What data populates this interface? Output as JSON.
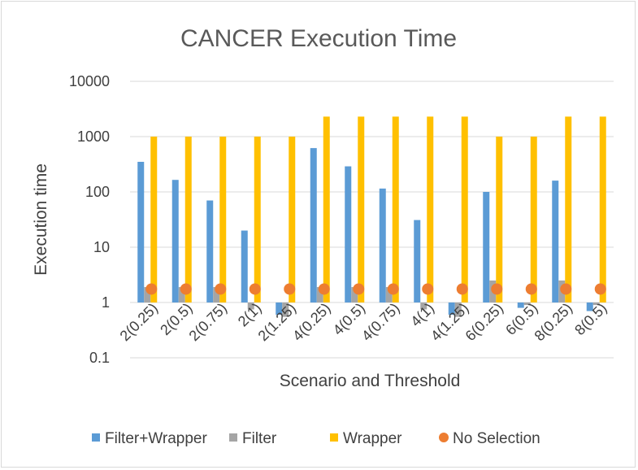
{
  "chart_data": {
    "type": "bar",
    "title": "CANCER Execution Time",
    "xlabel": "Scenario and Threshold",
    "ylabel": "Execution time",
    "yscale": "log",
    "ylim": [
      0.1,
      10000
    ],
    "yticks": [
      "0.1",
      "1",
      "10",
      "100",
      "1000",
      "10000"
    ],
    "grid": true,
    "legend_position": "bottom",
    "categories": [
      "2(0.25)",
      "2(0.5)",
      "2(0.75)",
      "2(1)",
      "2(1.25)",
      "4(0.25)",
      "4(0.5)",
      "4(0.75)",
      "4(1)",
      "4(1.25)",
      "6(0.25)",
      "6(0.5)",
      "8(0.25)",
      "8(0.5)"
    ],
    "series": [
      {
        "name": "Filter+Wrapper",
        "kind": "bar",
        "color": "#5b9bd5",
        "values": [
          350,
          165,
          70,
          20,
          0.6,
          620,
          290,
          115,
          31,
          0.6,
          100,
          0.8,
          160,
          0.7
        ]
      },
      {
        "name": "Filter",
        "kind": "bar",
        "color": "#a5a5a5",
        "values": [
          1.9,
          1.9,
          1.9,
          0.75,
          0.55,
          1.9,
          1.9,
          1.9,
          0.75,
          0.55,
          2.5,
          0.9,
          2.5,
          0.9
        ]
      },
      {
        "name": "Wrapper",
        "kind": "bar",
        "color": "#ffc000",
        "values": [
          1000,
          1000,
          1000,
          1000,
          1000,
          2300,
          2300,
          2300,
          2300,
          2300,
          1000,
          1000,
          2300,
          2300
        ]
      },
      {
        "name": "No Selection",
        "kind": "marker",
        "color": "#ed7d31",
        "values": [
          1.75,
          1.75,
          1.75,
          1.75,
          1.75,
          1.75,
          1.75,
          1.75,
          1.75,
          1.75,
          1.75,
          1.75,
          1.75,
          1.75
        ]
      }
    ]
  }
}
